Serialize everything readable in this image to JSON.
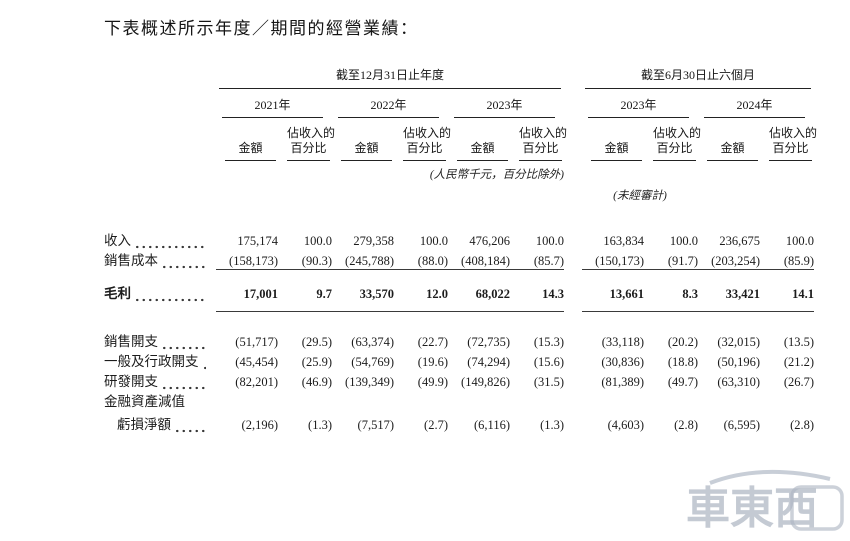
{
  "title": "下表概述所示年度／期間的經營業績：",
  "table": {
    "group_headers": [
      {
        "label": "截至12月31日止年度"
      },
      {
        "label": "截至6月30日止六個月"
      }
    ],
    "year_headers": [
      "2021年",
      "2022年",
      "2023年",
      "2023年",
      "2024年"
    ],
    "col_headers": {
      "amount": "金額",
      "pct_line1": "佔收入的",
      "pct_line2": "百分比"
    },
    "notes": {
      "units": "(人民幣千元，百分比除外)",
      "unaudited": "(未經審計)"
    },
    "rows": [
      {
        "label": "收入",
        "bold": false,
        "rule_below": false,
        "indent": false,
        "leader": true,
        "values": [
          "175,174",
          "100.0",
          "279,358",
          "100.0",
          "476,206",
          "100.0",
          "163,834",
          "100.0",
          "236,675",
          "100.0"
        ]
      },
      {
        "label": "銷售成本",
        "bold": false,
        "rule_below": true,
        "indent": false,
        "leader": true,
        "values": [
          "(158,173)",
          "(90.3)",
          "(245,788)",
          "(88.0)",
          "(408,184)",
          "(85.7)",
          "(150,173)",
          "(91.7)",
          "(203,254)",
          "(85.9)"
        ]
      },
      {
        "label": "毛利",
        "bold": true,
        "rule_below": true,
        "indent": false,
        "leader": true,
        "values": [
          "17,001",
          "9.7",
          "33,570",
          "12.0",
          "68,022",
          "14.3",
          "13,661",
          "8.3",
          "33,421",
          "14.1"
        ]
      },
      {
        "label": "銷售開支",
        "bold": false,
        "rule_below": false,
        "indent": false,
        "leader": true,
        "values": [
          "(51,717)",
          "(29.5)",
          "(63,374)",
          "(22.7)",
          "(72,735)",
          "(15.3)",
          "(33,118)",
          "(20.2)",
          "(32,015)",
          "(13.5)"
        ]
      },
      {
        "label": "一般及行政開支",
        "bold": false,
        "rule_below": false,
        "indent": false,
        "leader": true,
        "values": [
          "(45,454)",
          "(25.9)",
          "(54,769)",
          "(19.6)",
          "(74,294)",
          "(15.6)",
          "(30,836)",
          "(18.8)",
          "(50,196)",
          "(21.2)"
        ]
      },
      {
        "label": "研發開支",
        "bold": false,
        "rule_below": false,
        "indent": false,
        "leader": true,
        "values": [
          "(82,201)",
          "(46.9)",
          "(139,349)",
          "(49.9)",
          "(149,826)",
          "(31.5)",
          "(81,389)",
          "(49.7)",
          "(63,310)",
          "(26.7)"
        ]
      },
      {
        "label": "金融資產減值",
        "bold": false,
        "rule_below": false,
        "indent": false,
        "leader": false,
        "values": []
      },
      {
        "label": "虧損淨額",
        "bold": false,
        "rule_below": false,
        "indent": true,
        "leader": true,
        "values": [
          "(2,196)",
          "(1.3)",
          "(7,517)",
          "(2.7)",
          "(6,116)",
          "(1.3)",
          "(4,603)",
          "(2.8)",
          "(6,595)",
          "(2.8)"
        ]
      }
    ]
  },
  "watermark": {
    "text": "車東西",
    "color": "#aab3c0"
  }
}
